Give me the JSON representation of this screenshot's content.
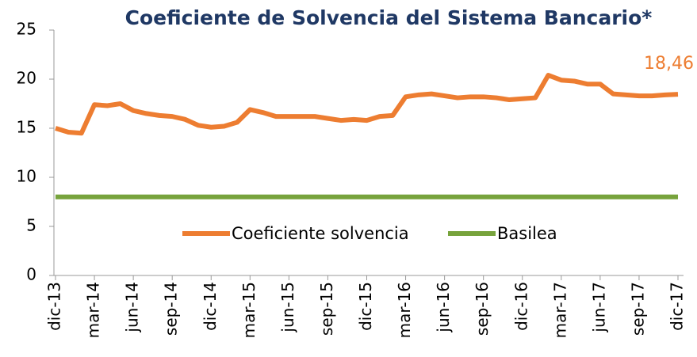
{
  "chart_data": {
    "type": "line",
    "title": "Coeficiente de Solvencia del Sistema Bancario*",
    "categories": [
      "dic-13",
      null,
      null,
      "mar-14",
      null,
      null,
      "jun-14",
      null,
      null,
      "sep-14",
      null,
      null,
      "dic-14",
      null,
      null,
      "mar-15",
      null,
      null,
      "jun-15",
      null,
      null,
      "sep-15",
      null,
      null,
      "dic-15",
      null,
      null,
      "mar-16",
      null,
      null,
      "jun-16",
      null,
      null,
      "sep-16",
      null,
      null,
      "dic-16",
      null,
      null,
      "mar-17",
      null,
      null,
      "jun-17",
      null,
      null,
      "sep-17",
      null,
      null,
      "dic-17"
    ],
    "series": [
      {
        "name": "Coeficiente solvencia",
        "color": "#ed7d31",
        "values": [
          15.0,
          14.6,
          14.5,
          17.4,
          17.3,
          17.5,
          16.8,
          16.5,
          16.3,
          16.2,
          15.9,
          15.3,
          15.1,
          15.2,
          15.6,
          16.9,
          16.6,
          16.2,
          16.2,
          16.2,
          16.2,
          16.0,
          15.8,
          15.9,
          15.8,
          16.2,
          16.3,
          18.2,
          18.4,
          18.5,
          18.3,
          18.1,
          18.2,
          18.2,
          18.1,
          17.9,
          18.0,
          18.1,
          20.4,
          19.9,
          19.8,
          19.5,
          19.5,
          18.5,
          18.4,
          18.3,
          18.3,
          18.4,
          18.46
        ],
        "value_labels": [
          null,
          null,
          null,
          null,
          null,
          null,
          null,
          null,
          null,
          null,
          null,
          null,
          null,
          null,
          null,
          null,
          null,
          null,
          null,
          null,
          null,
          null,
          null,
          null,
          null,
          null,
          null,
          null,
          null,
          null,
          null,
          null,
          null,
          null,
          null,
          null,
          null,
          null,
          null,
          null,
          null,
          null,
          null,
          null,
          null,
          null,
          null,
          null,
          "18,46"
        ]
      },
      {
        "name": "Basilea",
        "color": "#77a33c",
        "values": [
          8,
          8,
          8,
          8,
          8,
          8,
          8,
          8,
          8,
          8,
          8,
          8,
          8,
          8,
          8,
          8,
          8,
          8,
          8,
          8,
          8,
          8,
          8,
          8,
          8,
          8,
          8,
          8,
          8,
          8,
          8,
          8,
          8,
          8,
          8,
          8,
          8,
          8,
          8,
          8,
          8,
          8,
          8,
          8,
          8,
          8,
          8,
          8,
          8
        ]
      }
    ],
    "ylim": [
      0,
      25
    ],
    "yticks": [
      0,
      5,
      10,
      15,
      20,
      25
    ],
    "grid": false,
    "legend": "center"
  }
}
